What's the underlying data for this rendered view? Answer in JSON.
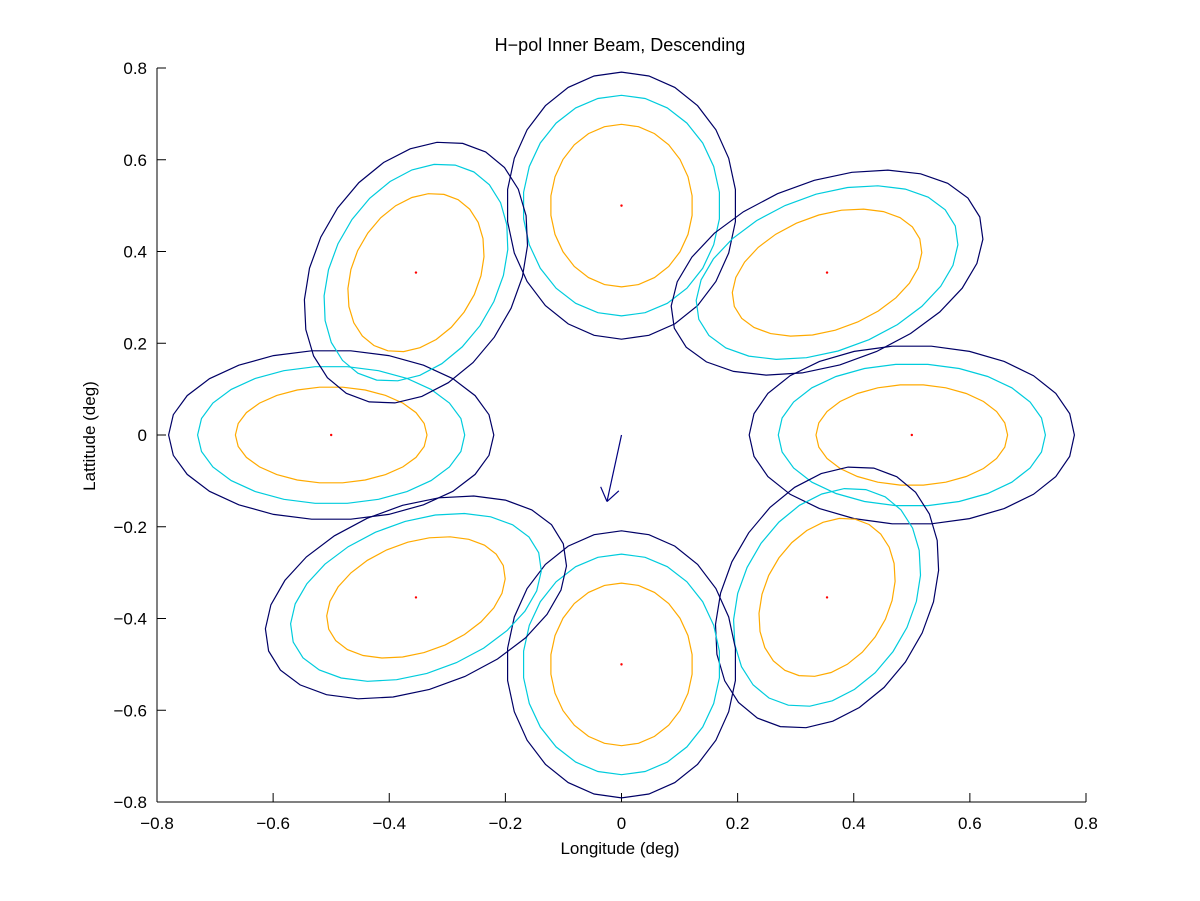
{
  "chart_data": {
    "type": "contour",
    "title": "H−pol Inner Beam, Descending",
    "xlabel": "Longitude (deg)",
    "ylabel": "Lattitude (deg)",
    "xlim": [
      -0.8,
      0.8
    ],
    "ylim": [
      -0.8,
      0.8
    ],
    "xticks": [
      "−0.8",
      "−0.6",
      "−0.4",
      "−0.2",
      "0",
      "0.2",
      "0.4",
      "0.6",
      "0.8"
    ],
    "yticks": [
      "−0.8",
      "−0.6",
      "−0.4",
      "−0.2",
      "0",
      "0.2",
      "0.4",
      "0.6",
      "0.8"
    ],
    "grid": false,
    "contour_levels": [
      {
        "level": "outer",
        "color": "#000066"
      },
      {
        "level": "middle",
        "color": "#00ccdd"
      },
      {
        "level": "inner",
        "color": "#ffaa00"
      }
    ],
    "beams": [
      {
        "center": [
          0.0,
          0.5
        ],
        "radii_deg": [
          [
            0.23,
            0.25
          ],
          [
            0.19,
            0.215
          ],
          [
            0.14,
            0.155
          ]
        ],
        "tilt_deg": 90
      },
      {
        "center": [
          0.354,
          0.354
        ],
        "radii_deg": [
          [
            0.28,
            0.2
          ],
          [
            0.235,
            0.17
          ],
          [
            0.17,
            0.125
          ]
        ],
        "tilt_deg": 20
      },
      {
        "center": [
          0.5,
          0.0
        ],
        "radii_deg": [
          [
            0.28,
            0.195
          ],
          [
            0.23,
            0.155
          ],
          [
            0.165,
            0.11
          ]
        ],
        "tilt_deg": 0
      },
      {
        "center": [
          0.354,
          -0.354
        ],
        "radii_deg": [
          [
            0.24,
            0.22
          ],
          [
            0.2,
            0.185
          ],
          [
            0.145,
            0.135
          ]
        ],
        "tilt_deg": 60
      },
      {
        "center": [
          0.0,
          -0.5
        ],
        "radii_deg": [
          [
            0.23,
            0.25
          ],
          [
            0.19,
            0.215
          ],
          [
            0.14,
            0.155
          ]
        ],
        "tilt_deg": 90
      },
      {
        "center": [
          -0.354,
          -0.354
        ],
        "radii_deg": [
          [
            0.27,
            0.2
          ],
          [
            0.225,
            0.165
          ],
          [
            0.16,
            0.12
          ]
        ],
        "tilt_deg": 20
      },
      {
        "center": [
          -0.5,
          0.0
        ],
        "radii_deg": [
          [
            0.28,
            0.185
          ],
          [
            0.23,
            0.15
          ],
          [
            0.165,
            0.105
          ]
        ],
        "tilt_deg": 0
      },
      {
        "center": [
          -0.354,
          0.354
        ],
        "radii_deg": [
          [
            0.24,
            0.22
          ],
          [
            0.2,
            0.18
          ],
          [
            0.145,
            0.135
          ]
        ],
        "tilt_deg": 60
      }
    ],
    "center_marker_color": "#ff0000",
    "arrow": {
      "from": [
        0.0,
        0.0
      ],
      "to": [
        -0.025,
        -0.145
      ],
      "color": "#000080"
    }
  }
}
